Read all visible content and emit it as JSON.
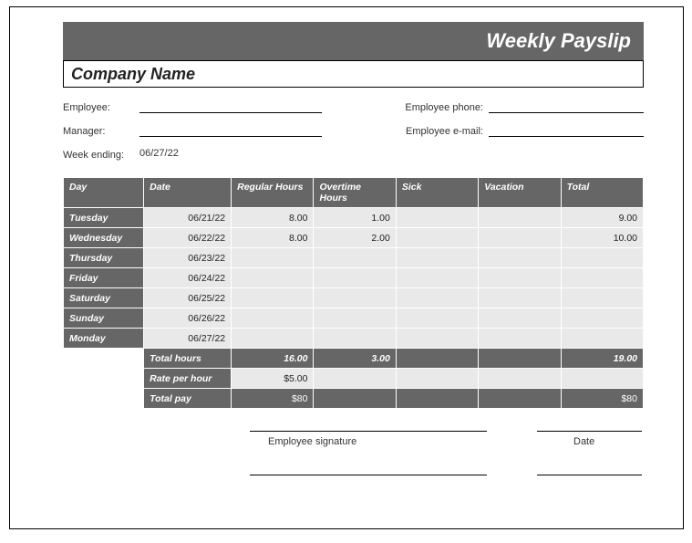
{
  "title": "Weekly Payslip",
  "company_label": "Company Name",
  "fields": {
    "employee_label": "Employee:",
    "employee_value": "",
    "manager_label": "Manager:",
    "manager_value": "",
    "week_ending_label": "Week ending:",
    "week_ending_value": "06/27/22",
    "phone_label": "Employee phone:",
    "phone_value": "",
    "email_label": "Employee e-mail:",
    "email_value": ""
  },
  "columns": {
    "day": "Day",
    "date": "Date",
    "regular": "Regular Hours",
    "overtime": "Overtime Hours",
    "sick": "Sick",
    "vacation": "Vacation",
    "total": "Total"
  },
  "rows": [
    {
      "day": "Tuesday",
      "date": "06/21/22",
      "regular": "8.00",
      "overtime": "1.00",
      "sick": "",
      "vacation": "",
      "total": "9.00"
    },
    {
      "day": "Wednesday",
      "date": "06/22/22",
      "regular": "8.00",
      "overtime": "2.00",
      "sick": "",
      "vacation": "",
      "total": "10.00"
    },
    {
      "day": "Thursday",
      "date": "06/23/22",
      "regular": "",
      "overtime": "",
      "sick": "",
      "vacation": "",
      "total": ""
    },
    {
      "day": "Friday",
      "date": "06/24/22",
      "regular": "",
      "overtime": "",
      "sick": "",
      "vacation": "",
      "total": ""
    },
    {
      "day": "Saturday",
      "date": "06/25/22",
      "regular": "",
      "overtime": "",
      "sick": "",
      "vacation": "",
      "total": ""
    },
    {
      "day": "Sunday",
      "date": "06/26/22",
      "regular": "",
      "overtime": "",
      "sick": "",
      "vacation": "",
      "total": ""
    },
    {
      "day": "Monday",
      "date": "06/27/22",
      "regular": "",
      "overtime": "",
      "sick": "",
      "vacation": "",
      "total": ""
    }
  ],
  "summary": {
    "total_hours_label": "Total hours",
    "total_hours": {
      "regular": "16.00",
      "overtime": "3.00",
      "sick": "",
      "vacation": "",
      "total": "19.00"
    },
    "rate_label": "Rate per hour",
    "rate": {
      "regular": "$5.00",
      "overtime": "",
      "sick": "",
      "vacation": "",
      "total": ""
    },
    "total_pay_label": "Total pay",
    "total_pay": {
      "regular": "$80",
      "overtime": "",
      "sick": "",
      "vacation": "",
      "total": "$80"
    }
  },
  "signature": {
    "employee_label": "Employee signature",
    "date_label": "Date"
  },
  "colors": {
    "header_bg": "#666666",
    "cell_bg": "#e9e9e9",
    "text": "#222222",
    "border": "#ffffff"
  }
}
